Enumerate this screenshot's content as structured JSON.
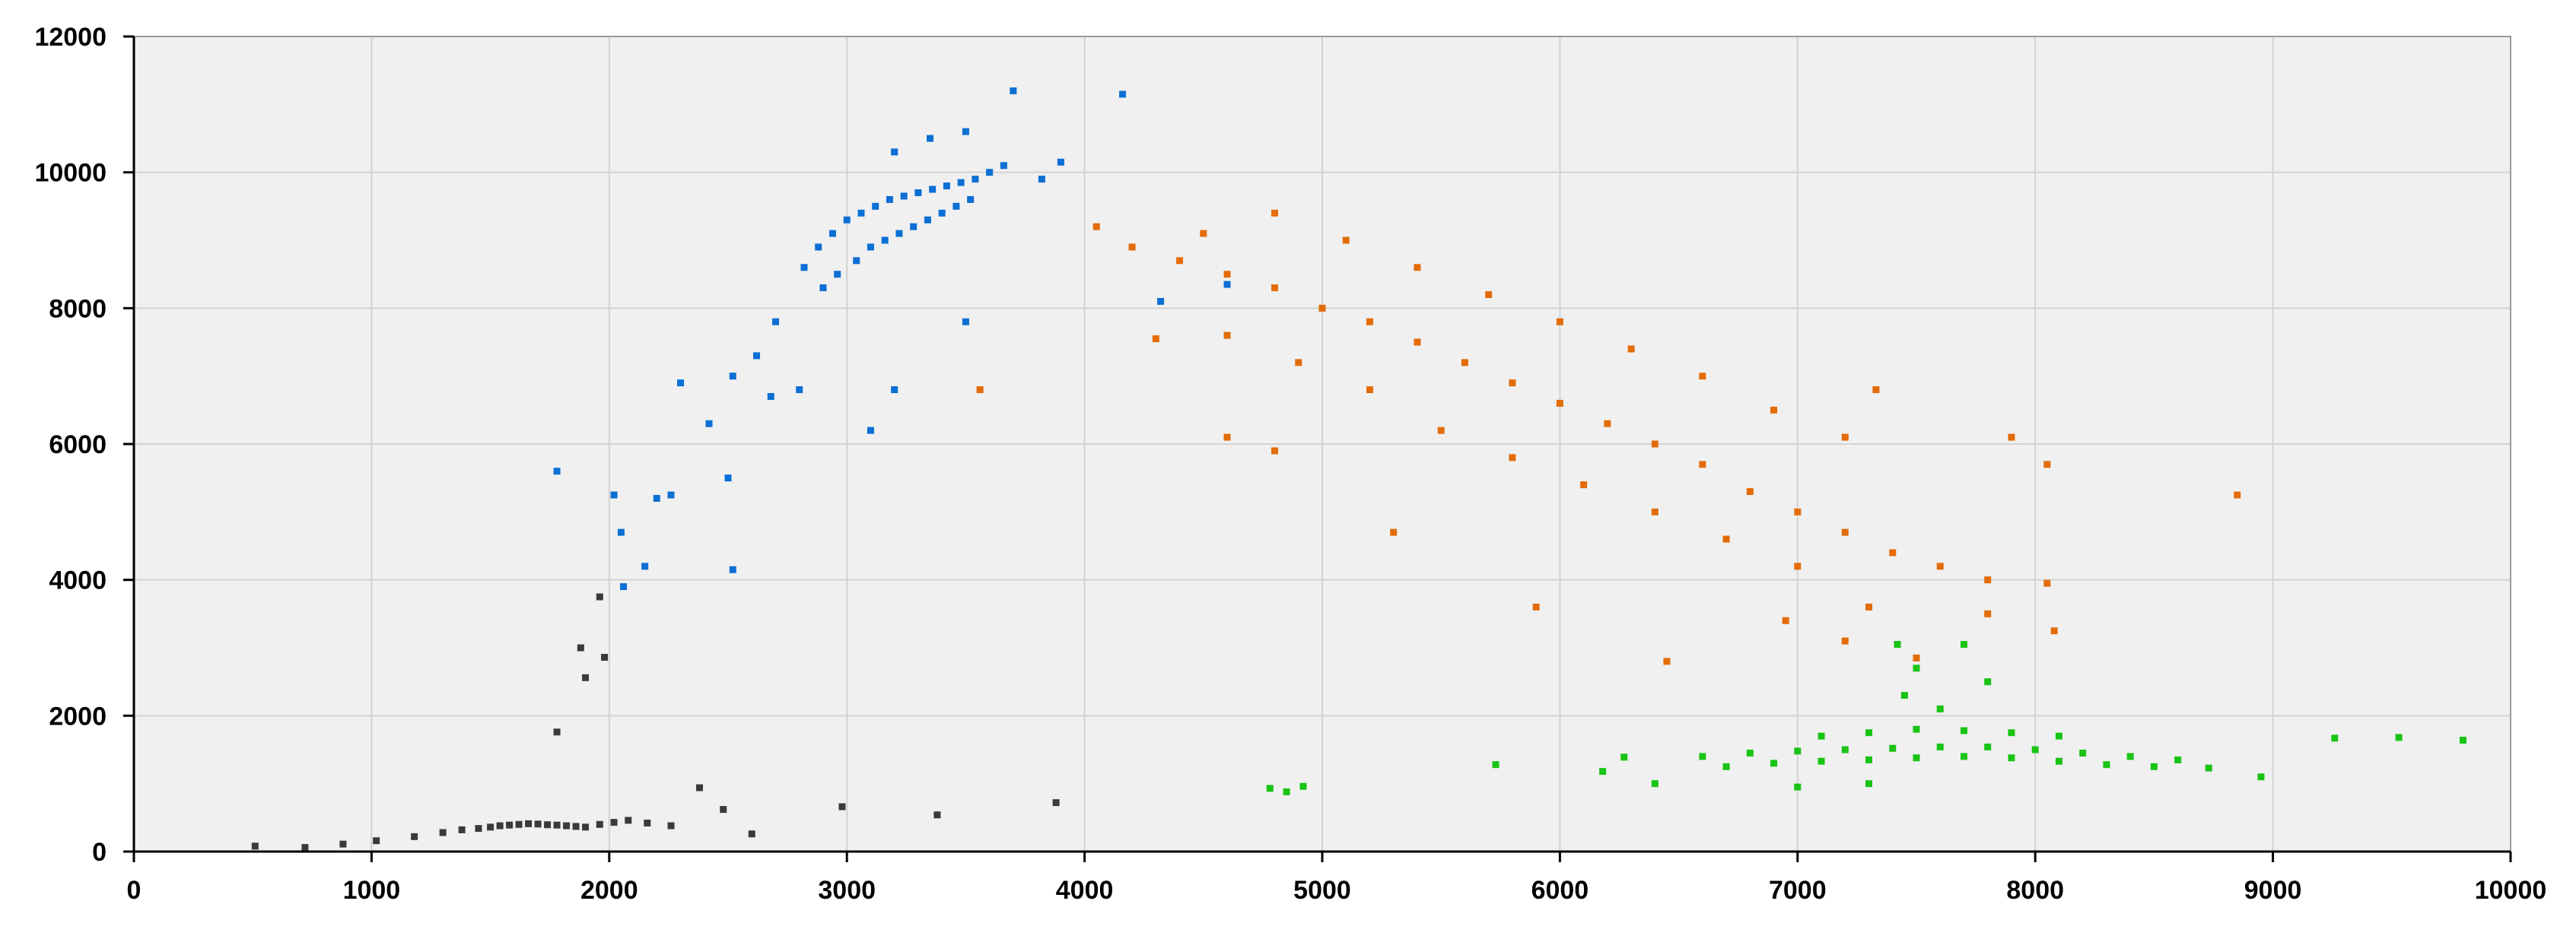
{
  "chart_data": {
    "type": "scatter",
    "title": "",
    "xlabel": "",
    "ylabel": "",
    "xlim": [
      0,
      10000
    ],
    "ylim": [
      0,
      12000
    ],
    "grid": true,
    "legend": "none",
    "x_ticks": [
      "0",
      "1000",
      "2000",
      "3000",
      "4000",
      "5000",
      "6000",
      "7000",
      "8000",
      "9000",
      "10000"
    ],
    "y_ticks": [
      "0",
      "2000",
      "4000",
      "6000",
      "8000",
      "10000",
      "12000"
    ],
    "plot_background": "#f0f0f0",
    "series": [
      {
        "color": "#3a3a3a",
        "points": [
          [
            510,
            80
          ],
          [
            720,
            60
          ],
          [
            880,
            110
          ],
          [
            1020,
            160
          ],
          [
            1180,
            220
          ],
          [
            1300,
            280
          ],
          [
            1380,
            320
          ],
          [
            1450,
            340
          ],
          [
            1500,
            360
          ],
          [
            1540,
            380
          ],
          [
            1580,
            390
          ],
          [
            1620,
            400
          ],
          [
            1660,
            410
          ],
          [
            1700,
            405
          ],
          [
            1740,
            395
          ],
          [
            1780,
            390
          ],
          [
            1820,
            380
          ],
          [
            1860,
            370
          ],
          [
            1900,
            360
          ],
          [
            1960,
            400
          ],
          [
            2020,
            430
          ],
          [
            2080,
            460
          ],
          [
            2160,
            420
          ],
          [
            2260,
            380
          ],
          [
            2380,
            940
          ],
          [
            2480,
            620
          ],
          [
            2600,
            260
          ],
          [
            2980,
            660
          ],
          [
            3380,
            540
          ],
          [
            3880,
            720
          ],
          [
            1880,
            3000
          ],
          [
            1960,
            3750
          ],
          [
            1980,
            2860
          ],
          [
            1780,
            1760
          ],
          [
            1900,
            2560
          ]
        ]
      },
      {
        "color": "#0b6fd4",
        "points": [
          [
            2820,
            8600
          ],
          [
            2880,
            8900
          ],
          [
            2940,
            9100
          ],
          [
            3000,
            9300
          ],
          [
            3060,
            9400
          ],
          [
            3120,
            9500
          ],
          [
            3180,
            9600
          ],
          [
            3240,
            9650
          ],
          [
            3300,
            9700
          ],
          [
            3360,
            9750
          ],
          [
            3420,
            9800
          ],
          [
            3480,
            9850
          ],
          [
            3540,
            9900
          ],
          [
            3600,
            10000
          ],
          [
            3660,
            10100
          ],
          [
            2900,
            8300
          ],
          [
            2960,
            8500
          ],
          [
            3040,
            8700
          ],
          [
            3100,
            8900
          ],
          [
            3160,
            9000
          ],
          [
            3220,
            9100
          ],
          [
            3280,
            9200
          ],
          [
            3340,
            9300
          ],
          [
            3400,
            9400
          ],
          [
            3460,
            9500
          ],
          [
            3520,
            9600
          ],
          [
            3200,
            10300
          ],
          [
            3350,
            10500
          ],
          [
            3500,
            10600
          ],
          [
            3700,
            11200
          ],
          [
            4160,
            11150
          ],
          [
            3900,
            10150
          ],
          [
            3820,
            9900
          ],
          [
            2700,
            7800
          ],
          [
            2620,
            7300
          ],
          [
            2520,
            7000
          ],
          [
            2420,
            6300
          ],
          [
            2300,
            6900
          ],
          [
            2200,
            5200
          ],
          [
            2050,
            4700
          ],
          [
            2500,
            5500
          ],
          [
            2260,
            5250
          ],
          [
            2150,
            4200
          ],
          [
            2060,
            3900
          ],
          [
            1780,
            5600
          ],
          [
            2020,
            5250
          ],
          [
            2520,
            4150
          ],
          [
            3100,
            6200
          ],
          [
            3200,
            6800
          ],
          [
            3500,
            7800
          ],
          [
            2800,
            6800
          ],
          [
            2680,
            6700
          ],
          [
            4320,
            8100
          ],
          [
            4600,
            8350
          ]
        ]
      },
      {
        "color": "#e36c09",
        "points": [
          [
            4050,
            9200
          ],
          [
            4200,
            8900
          ],
          [
            4400,
            8700
          ],
          [
            4600,
            8500
          ],
          [
            4800,
            8300
          ],
          [
            5000,
            8000
          ],
          [
            5200,
            7800
          ],
          [
            5400,
            7500
          ],
          [
            5600,
            7200
          ],
          [
            5800,
            6900
          ],
          [
            6000,
            6600
          ],
          [
            6200,
            6300
          ],
          [
            6400,
            6000
          ],
          [
            6600,
            5700
          ],
          [
            6800,
            5300
          ],
          [
            7000,
            5000
          ],
          [
            7200,
            4700
          ],
          [
            7400,
            4400
          ],
          [
            7600,
            4200
          ],
          [
            7800,
            4000
          ],
          [
            4500,
            9100
          ],
          [
            4800,
            9400
          ],
          [
            5100,
            9000
          ],
          [
            5400,
            8600
          ],
          [
            5700,
            8200
          ],
          [
            6000,
            7800
          ],
          [
            6300,
            7400
          ],
          [
            6600,
            7000
          ],
          [
            6900,
            6500
          ],
          [
            7200,
            6100
          ],
          [
            4600,
            7600
          ],
          [
            4900,
            7200
          ],
          [
            5200,
            6800
          ],
          [
            5500,
            6200
          ],
          [
            5800,
            5800
          ],
          [
            6100,
            5400
          ],
          [
            6400,
            5000
          ],
          [
            6700,
            4600
          ],
          [
            7000,
            4200
          ],
          [
            7300,
            3600
          ],
          [
            4600,
            6100
          ],
          [
            4800,
            5900
          ],
          [
            5300,
            4700
          ],
          [
            5900,
            3600
          ],
          [
            6450,
            2800
          ],
          [
            6950,
            3400
          ],
          [
            7200,
            3100
          ],
          [
            7500,
            2850
          ],
          [
            7800,
            3500
          ],
          [
            7900,
            6100
          ],
          [
            8050,
            5700
          ],
          [
            8850,
            5250
          ],
          [
            8080,
            3250
          ],
          [
            8050,
            3950
          ],
          [
            7330,
            6800
          ],
          [
            3560,
            6800
          ],
          [
            4300,
            7550
          ]
        ]
      },
      {
        "color": "#19c414",
        "points": [
          [
            6600,
            1400
          ],
          [
            6800,
            1450
          ],
          [
            7000,
            1480
          ],
          [
            7200,
            1500
          ],
          [
            7400,
            1520
          ],
          [
            7600,
            1540
          ],
          [
            7800,
            1540
          ],
          [
            8000,
            1500
          ],
          [
            8200,
            1450
          ],
          [
            8400,
            1400
          ],
          [
            8600,
            1350
          ],
          [
            6700,
            1250
          ],
          [
            6900,
            1300
          ],
          [
            7100,
            1330
          ],
          [
            7300,
            1350
          ],
          [
            7500,
            1380
          ],
          [
            7700,
            1400
          ],
          [
            7900,
            1380
          ],
          [
            8100,
            1330
          ],
          [
            8300,
            1280
          ],
          [
            8500,
            1250
          ],
          [
            7100,
            1700
          ],
          [
            7300,
            1750
          ],
          [
            7500,
            1800
          ],
          [
            7700,
            1780
          ],
          [
            7900,
            1750
          ],
          [
            8100,
            1700
          ],
          [
            7450,
            2300
          ],
          [
            7500,
            2700
          ],
          [
            7700,
            3050
          ],
          [
            7420,
            3050
          ],
          [
            7800,
            2500
          ],
          [
            7600,
            2100
          ],
          [
            6180,
            1180
          ],
          [
            6270,
            1390
          ],
          [
            5730,
            1280
          ],
          [
            4780,
            930
          ],
          [
            4850,
            880
          ],
          [
            4920,
            960
          ],
          [
            8730,
            1230
          ],
          [
            8950,
            1100
          ],
          [
            9260,
            1670
          ],
          [
            9530,
            1680
          ],
          [
            9800,
            1640
          ],
          [
            6400,
            1000
          ],
          [
            7000,
            950
          ],
          [
            7300,
            1000
          ]
        ]
      }
    ]
  }
}
